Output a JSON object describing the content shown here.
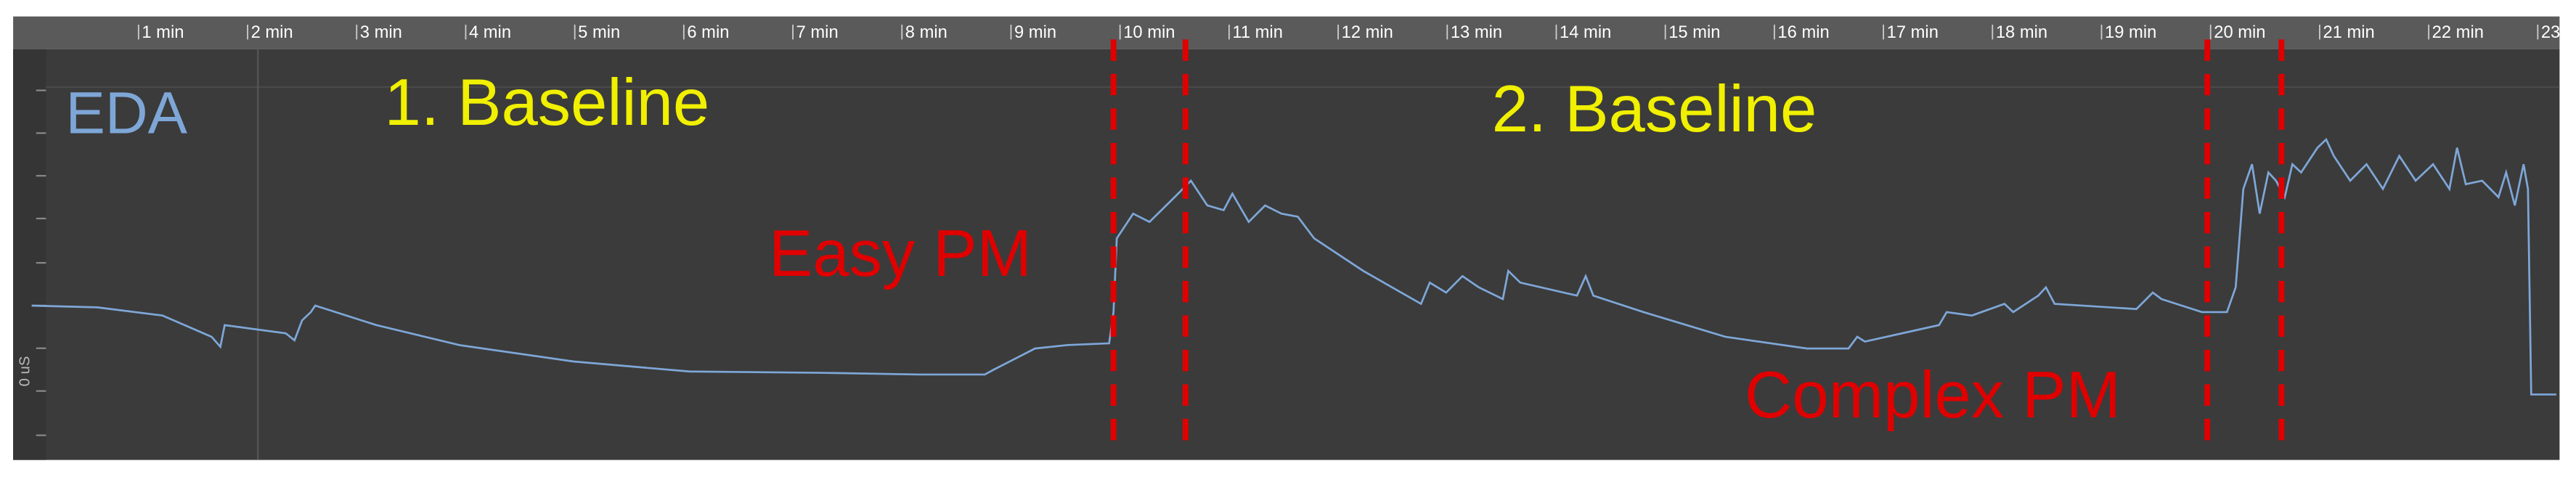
{
  "chart_data": {
    "type": "line",
    "annotations": [
      "EDA",
      "1. Baseline",
      "2. Baseline",
      "Easy PM",
      "Complex PM"
    ],
    "xlim": [
      -0.15,
      23.2
    ],
    "xticks": [
      {
        "value": 1,
        "label": "1 min"
      },
      {
        "value": 2,
        "label": "2 min"
      },
      {
        "value": 3,
        "label": "3 min"
      },
      {
        "value": 4,
        "label": "4 min"
      },
      {
        "value": 5,
        "label": "5 min"
      },
      {
        "value": 6,
        "label": "6 min"
      },
      {
        "value": 7,
        "label": "7 min"
      },
      {
        "value": 8,
        "label": "8 min"
      },
      {
        "value": 9,
        "label": "9 min"
      },
      {
        "value": 10,
        "label": "10 min"
      },
      {
        "value": 11,
        "label": "11 min"
      },
      {
        "value": 12,
        "label": "12 min"
      },
      {
        "value": 13,
        "label": "13 min"
      },
      {
        "value": 14,
        "label": "14 min"
      },
      {
        "value": 15,
        "label": "15 min"
      },
      {
        "value": 16,
        "label": "16 min"
      },
      {
        "value": 17,
        "label": "17 min"
      },
      {
        "value": 18,
        "label": "18 min"
      },
      {
        "value": 19,
        "label": "19 min"
      },
      {
        "value": 20,
        "label": "20 min"
      },
      {
        "value": 21,
        "label": "21 min"
      },
      {
        "value": 22,
        "label": "22 min"
      },
      23
    ],
    "ylim": [
      -1.59,
      7.88
    ],
    "yticks": [
      {
        "value": 0,
        "label": "0 uS"
      }
    ],
    "markers": [
      9.94,
      10.6,
      19.97,
      20.65
    ],
    "marker_color": "#e00000",
    "series": [
      {
        "color": "#7ea7d8",
        "x": [
          0.02,
          0.62,
          1.22,
          1.67,
          1.75,
          1.79,
          2.35,
          2.43,
          2.5,
          2.58,
          2.62,
          3.18,
          3.94,
          4.99,
          6.05,
          7.25,
          8.16,
          8.76,
          8.84,
          9.22,
          9.52,
          9.9,
          9.94,
          9.97,
          10.12,
          10.27,
          10.5,
          10.65,
          10.8,
          10.95,
          11.03,
          11.18,
          11.33,
          11.48,
          11.63,
          11.78,
          12.23,
          12.76,
          12.84,
          12.99,
          13.14,
          13.29,
          13.51,
          13.56,
          13.67,
          14.19,
          14.27,
          14.34,
          14.8,
          15.55,
          16.3,
          16.68,
          16.76,
          16.83,
          17.51,
          17.58,
          17.81,
          18.11,
          18.19,
          18.42,
          18.49,
          18.57,
          19.32,
          19.47,
          19.55,
          19.92,
          20.15,
          20.23,
          20.3,
          20.38,
          20.45,
          20.53,
          20.6,
          20.68,
          20.75,
          20.83,
          20.98,
          21.06,
          21.13,
          21.28,
          21.43,
          21.58,
          21.73,
          21.88,
          22.04,
          22.19,
          22.26,
          22.34,
          22.49,
          22.64,
          22.71,
          22.79,
          22.87,
          22.91,
          22.94,
          23.17
        ],
        "values": [
          1.97,
          1.93,
          1.74,
          1.25,
          1.02,
          1.52,
          1.33,
          1.17,
          1.63,
          1.82,
          1.97,
          1.52,
          1.06,
          0.68,
          0.45,
          0.42,
          0.38,
          0.38,
          0.49,
          0.98,
          1.06,
          1.1,
          1.82,
          3.52,
          4.09,
          3.9,
          4.47,
          4.85,
          4.28,
          4.17,
          4.55,
          3.9,
          4.28,
          4.09,
          4.02,
          3.52,
          2.77,
          2.01,
          2.5,
          2.27,
          2.65,
          2.39,
          2.12,
          2.77,
          2.5,
          2.2,
          2.65,
          2.2,
          1.82,
          1.25,
          0.98,
          0.98,
          1.25,
          1.14,
          1.52,
          1.82,
          1.74,
          2.01,
          1.82,
          2.2,
          2.39,
          2.01,
          1.89,
          2.27,
          2.12,
          1.82,
          1.82,
          2.39,
          4.66,
          5.23,
          4.09,
          5.04,
          4.85,
          4.47,
          5.23,
          5.04,
          5.61,
          5.8,
          5.42,
          4.85,
          5.23,
          4.66,
          5.42,
          4.85,
          5.23,
          4.66,
          5.61,
          4.77,
          4.85,
          4.47,
          5.04,
          4.28,
          5.23,
          4.66,
          -0.08,
          -0.08
        ]
      }
    ]
  }
}
